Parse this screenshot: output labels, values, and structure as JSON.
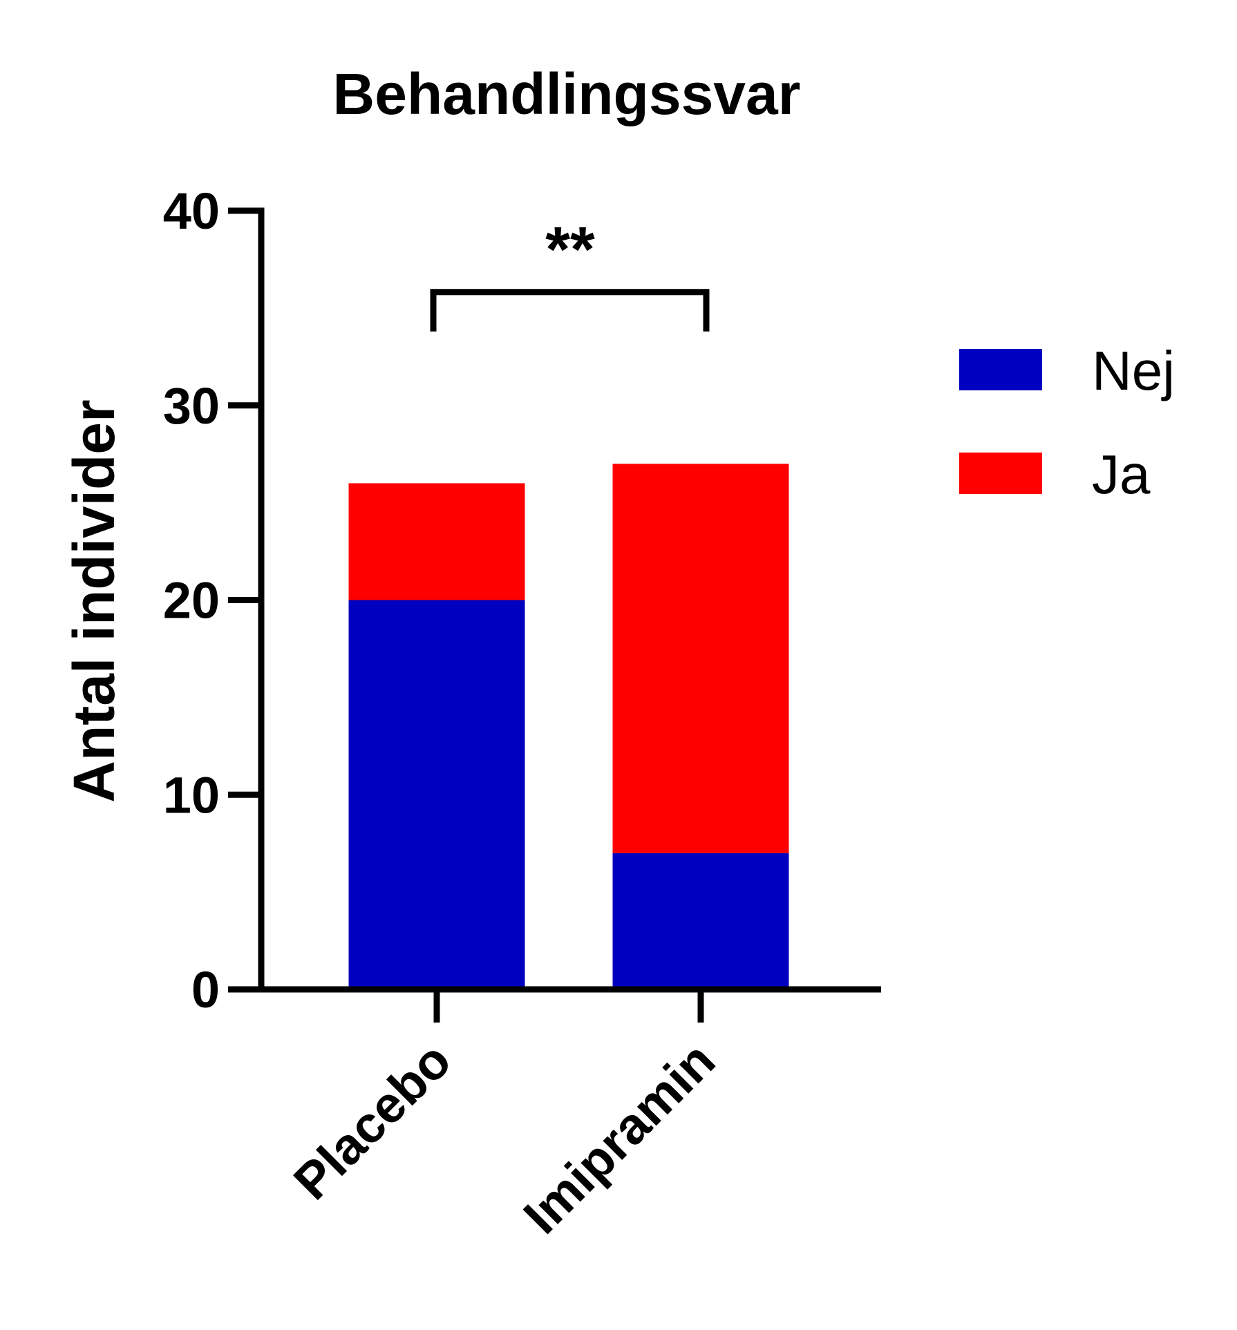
{
  "chart_data": {
    "type": "bar",
    "stacked": true,
    "title": "Behandlingssvar",
    "xlabel": "",
    "ylabel": "Antal individer",
    "categories": [
      "Placebo",
      "Imipramin"
    ],
    "series": [
      {
        "name": "Nej",
        "values": [
          20,
          7
        ],
        "color": "#0000C0"
      },
      {
        "name": "Ja",
        "values": [
          6,
          20
        ],
        "color": "#FF0000"
      }
    ],
    "ylim": [
      0,
      40
    ],
    "yticks": [
      "0",
      "10",
      "20",
      "30",
      "40"
    ],
    "grid": false,
    "legend": "right",
    "annotations": [
      {
        "text": "**",
        "type": "significance-bracket",
        "between": [
          "Placebo",
          "Imipramin"
        ],
        "y": 36
      }
    ]
  }
}
